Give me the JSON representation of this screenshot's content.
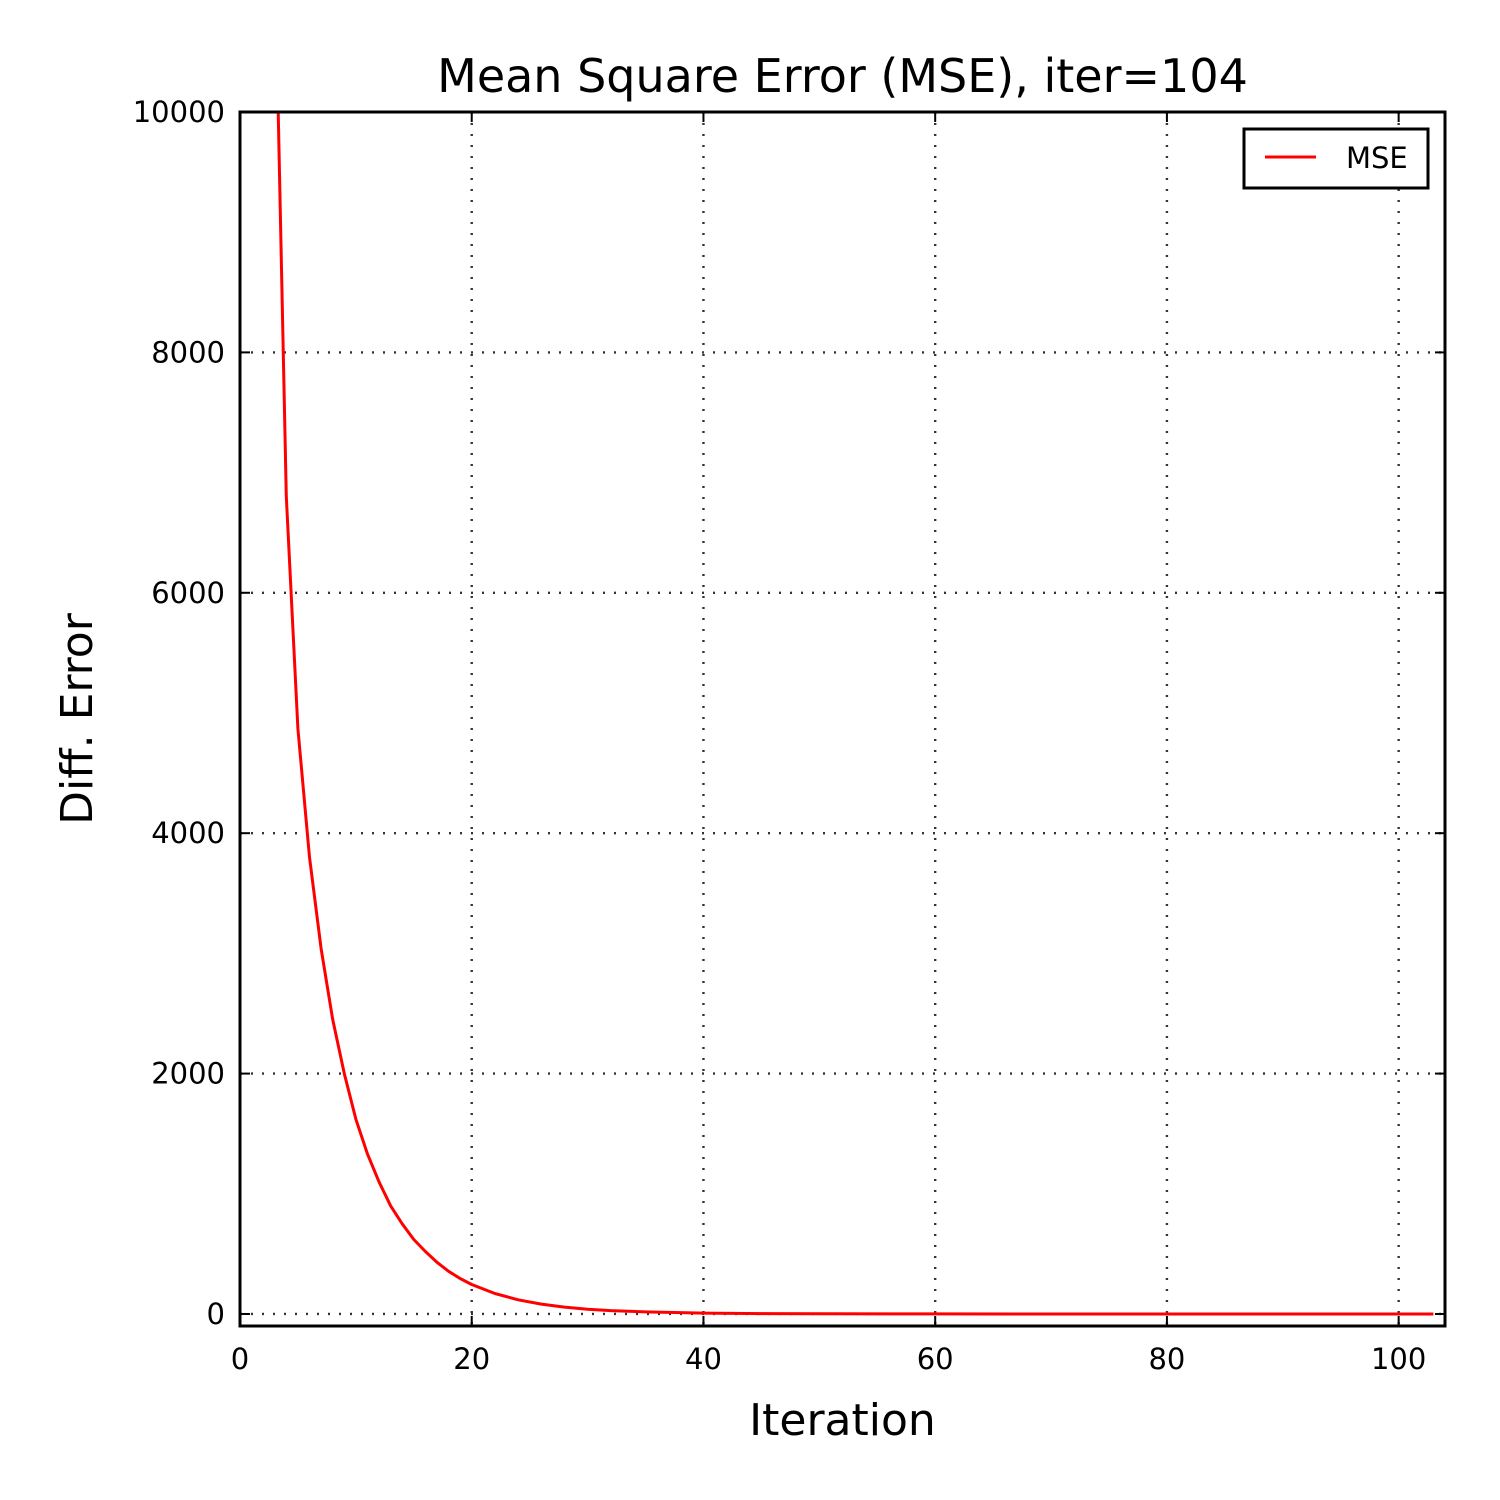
{
  "chart_data": {
    "type": "line",
    "title": "Mean Square Error (MSE), iter=104",
    "xlabel": "Iteration",
    "ylabel": "Diff. Error",
    "xlim": [
      0,
      104
    ],
    "ylim": [
      -100,
      10000
    ],
    "xticks": [
      0,
      20,
      40,
      60,
      80,
      100
    ],
    "xtick_labels": [
      "0",
      "20",
      "40",
      "60",
      "80",
      "100"
    ],
    "yticks": [
      0,
      2000,
      4000,
      6000,
      8000,
      10000
    ],
    "ytick_labels": [
      "0",
      "2000",
      "4000",
      "6000",
      "8000",
      "10000"
    ],
    "grid": true,
    "legend_position": "top-right",
    "series": [
      {
        "name": "MSE",
        "color": "#ff0000",
        "x": [
          3.3,
          4,
          5,
          6,
          7,
          8,
          9,
          10,
          11,
          12,
          13,
          14,
          15,
          16,
          17,
          18,
          19,
          20,
          22,
          24,
          26,
          28,
          30,
          32,
          35,
          40,
          45,
          50,
          60,
          70,
          80,
          90,
          100,
          103
        ],
        "y": [
          10000,
          6800,
          4870,
          3800,
          3040,
          2450,
          2000,
          1620,
          1330,
          1100,
          900,
          750,
          620,
          520,
          430,
          355,
          295,
          245,
          170,
          118,
          82,
          57,
          40,
          28,
          17,
          7,
          3,
          1.5,
          0.5,
          0.2,
          0.1,
          0.05,
          0.02,
          0.01
        ]
      }
    ]
  }
}
